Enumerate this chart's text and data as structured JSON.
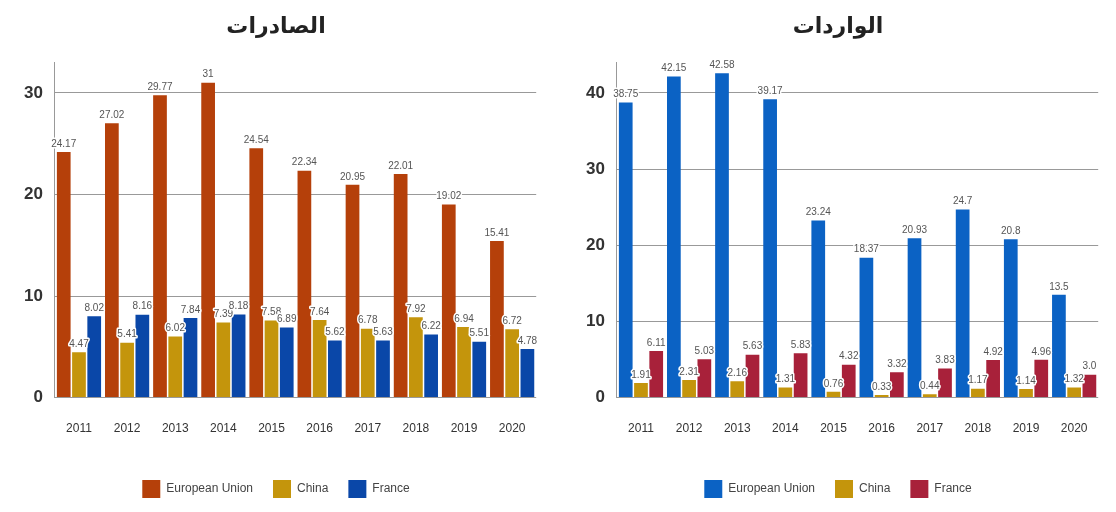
{
  "chart_data": [
    {
      "type": "bar",
      "title": "الصادرات",
      "categories": [
        "2011",
        "2012",
        "2013",
        "2014",
        "2015",
        "2016",
        "2017",
        "2018",
        "2019",
        "2020"
      ],
      "ylim": [
        0,
        33
      ],
      "yticks": [
        0,
        10,
        20,
        30
      ],
      "grid": "y",
      "legend": "bottom",
      "series": [
        {
          "name": "European Union",
          "color": "#b5400a",
          "values": [
            24.17,
            27.02,
            29.77,
            31,
            24.54,
            22.34,
            20.95,
            22.01,
            19.02,
            15.41
          ],
          "value_labels": [
            "24.17",
            "27.02",
            "29.77",
            "31",
            "24.54",
            "22.34",
            "20.95",
            "22.01",
            "19.02",
            "15.41"
          ]
        },
        {
          "name": "China",
          "color": "#c4950c",
          "values": [
            4.47,
            5.41,
            6.02,
            7.39,
            7.58,
            7.64,
            6.78,
            7.92,
            6.94,
            6.72
          ],
          "value_labels": [
            "4.47",
            "5.41",
            "6.02",
            "7.39",
            "7.58",
            "7.64",
            "6.78",
            "7.92",
            "6.94",
            "6.72"
          ]
        },
        {
          "name": "France",
          "color": "#0a47a8",
          "values": [
            8.02,
            8.16,
            7.84,
            8.18,
            6.89,
            5.62,
            5.63,
            6.22,
            5.51,
            4.78
          ],
          "value_labels": [
            "8.02",
            "8.16",
            "7.84",
            "8.18",
            "6.89",
            "5.62",
            "5.63",
            "6.22",
            "5.51",
            "4.78"
          ]
        }
      ]
    },
    {
      "type": "bar",
      "title": "الواردات",
      "categories": [
        "2011",
        "2012",
        "2013",
        "2014",
        "2015",
        "2016",
        "2017",
        "2018",
        "2019",
        "2020"
      ],
      "ylim": [
        0,
        44
      ],
      "yticks": [
        0,
        10,
        20,
        30,
        40
      ],
      "grid": "y",
      "legend": "bottom",
      "series": [
        {
          "name": "European Union",
          "color": "#0b62c4",
          "values": [
            38.75,
            42.15,
            42.58,
            39.17,
            23.24,
            18.37,
            20.93,
            24.7,
            20.8,
            13.5
          ],
          "value_labels": [
            "38.75",
            "42.15",
            "42.58",
            "39.17",
            "23.24",
            "18.37",
            "20.93",
            "24.7",
            "20.8",
            "13.5"
          ]
        },
        {
          "name": "China",
          "color": "#c4950c",
          "values": [
            1.91,
            2.31,
            2.16,
            1.31,
            0.76,
            0.33,
            0.44,
            1.17,
            1.14,
            1.32
          ],
          "value_labels": [
            "1.91",
            "2.31",
            "2.16",
            "1.31",
            "0.76",
            "0.33",
            "0.44",
            "1.17",
            "1.14",
            "1.32"
          ]
        },
        {
          "name": "France",
          "color": "#a8213a",
          "values": [
            6.11,
            5.03,
            5.63,
            5.83,
            4.32,
            3.32,
            3.83,
            4.92,
            4.96,
            3.0
          ],
          "value_labels": [
            "6.11",
            "5.03",
            "5.63",
            "5.83",
            "4.32",
            "3.32",
            "3.83",
            "4.92",
            "4.96",
            "3.0"
          ]
        }
      ]
    }
  ]
}
